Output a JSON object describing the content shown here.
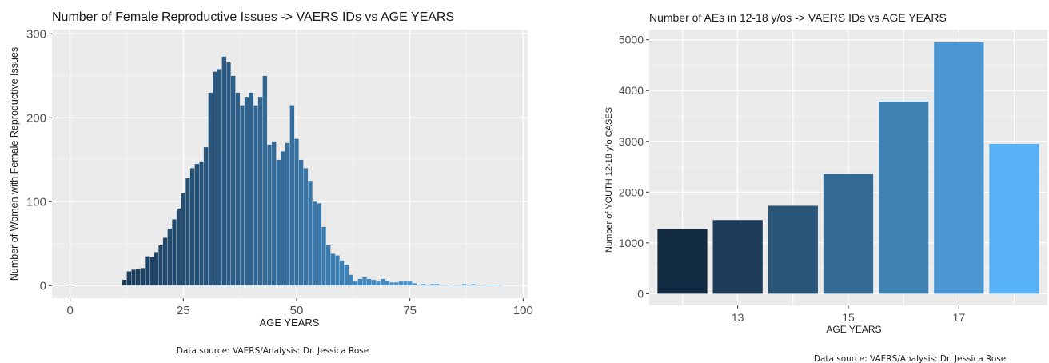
{
  "chart_data": [
    {
      "type": "bar",
      "title": "Number of Female Reproductive Issues -> VAERS IDs vs AGE YEARS",
      "xlabel": "AGE YEARS",
      "ylabel": "Number of Women with Female Reproductive Issues",
      "xlim": [
        -4,
        101
      ],
      "ylim": [
        -15,
        305
      ],
      "xticks": [
        0,
        25,
        50,
        75,
        100
      ],
      "yticks": [
        0,
        100,
        200,
        300
      ],
      "grid": true,
      "color_low": "#132B43",
      "color_high": "#56B1F7",
      "x": [
        0,
        12,
        13,
        14,
        15,
        16,
        17,
        18,
        19,
        20,
        21,
        22,
        23,
        24,
        25,
        26,
        27,
        28,
        29,
        30,
        31,
        32,
        33,
        34,
        35,
        36,
        37,
        38,
        39,
        40,
        41,
        42,
        43,
        44,
        45,
        46,
        47,
        48,
        49,
        50,
        51,
        52,
        53,
        54,
        55,
        56,
        57,
        58,
        59,
        60,
        61,
        62,
        63,
        64,
        65,
        66,
        67,
        68,
        69,
        70,
        71,
        72,
        73,
        74,
        75,
        76,
        77,
        78,
        79,
        80,
        81,
        82,
        83,
        84,
        85,
        86,
        87,
        88,
        89,
        90,
        91,
        92,
        93,
        94,
        95
      ],
      "values": [
        1,
        7,
        17,
        19,
        20,
        21,
        35,
        34,
        40,
        48,
        57,
        68,
        79,
        92,
        110,
        128,
        140,
        145,
        148,
        165,
        230,
        255,
        258,
        273,
        266,
        250,
        230,
        215,
        225,
        230,
        215,
        225,
        250,
        168,
        172,
        150,
        160,
        170,
        215,
        175,
        150,
        140,
        125,
        100,
        98,
        70,
        48,
        38,
        36,
        30,
        25,
        13,
        5,
        8,
        10,
        8,
        7,
        5,
        8,
        6,
        4,
        4,
        5,
        5,
        5,
        3,
        0,
        2,
        0,
        2,
        2,
        0,
        0,
        1,
        0,
        0,
        2,
        0,
        2,
        0,
        0,
        1,
        1,
        1,
        0
      ],
      "source": "Data source: VAERS/Analysis: Dr. Jessica Rose"
    },
    {
      "type": "bar",
      "title": "Number of AEs in 12-18 y/os  -> VAERS IDs vs AGE YEARS",
      "xlabel": "AGE YEARS",
      "ylabel": "Number of YOUTH 12-18 y/o CASES",
      "categories": [
        12,
        13,
        14,
        15,
        16,
        17,
        18
      ],
      "xticks": [
        13,
        15,
        17
      ],
      "values": [
        1270,
        1450,
        1730,
        2360,
        3780,
        4950,
        2950
      ],
      "colors": [
        "#132B43",
        "#1C3C5A",
        "#285577",
        "#336A94",
        "#3E82B4",
        "#4A96D3",
        "#56B1F7"
      ],
      "ylim": [
        -230,
        5200
      ],
      "yticks": [
        0,
        1000,
        2000,
        3000,
        4000,
        5000
      ],
      "grid": true,
      "source": "Data source: VAERS/Analysis: Dr. Jessica Rose"
    }
  ]
}
